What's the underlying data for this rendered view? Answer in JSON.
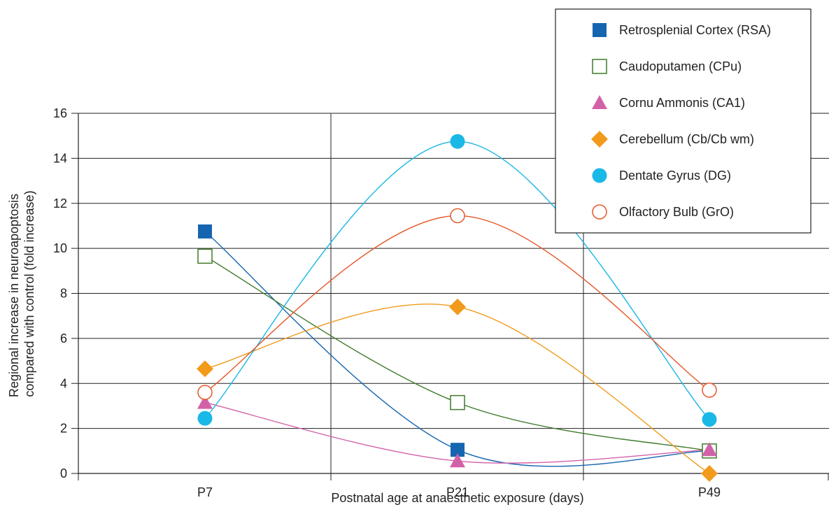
{
  "chart_data": {
    "type": "line",
    "title": "",
    "xlabel": "Postnatal age at anaesthetic exposure (days)",
    "ylabel_lines": [
      "Regional increase in neuroapoptosis",
      "compared with control (fold increase)"
    ],
    "categories": [
      "P7",
      "P21",
      "P49"
    ],
    "ylim": [
      0,
      16
    ],
    "yticks": [
      0,
      2,
      4,
      6,
      8,
      10,
      12,
      14,
      16
    ],
    "grid": true,
    "legend_position": "top-right",
    "smooth": true,
    "series": [
      {
        "name": "Retrosplenial Cortex (RSA)",
        "values": [
          10.75,
          1.05,
          1.0
        ],
        "color": "#1565b0",
        "marker": "filled-square"
      },
      {
        "name": "Caudoputamen (CPu)",
        "values": [
          9.65,
          3.15,
          1.0
        ],
        "color": "#3f7a2a",
        "marker": "open-square"
      },
      {
        "name": "Cornu Ammonis (CA1)",
        "values": [
          3.15,
          0.55,
          1.05
        ],
        "color": "#d262a8",
        "marker": "filled-triangle"
      },
      {
        "name": "Cerebellum (Cb/Cb wm)",
        "values": [
          4.65,
          7.4,
          0.0
        ],
        "color": "#f29a1c",
        "marker": "filled-diamond"
      },
      {
        "name": "Dentate Gyrus (DG)",
        "values": [
          2.45,
          14.75,
          2.4
        ],
        "color": "#1ab8e6",
        "marker": "filled-circle"
      },
      {
        "name": "Olfactory Bulb (GrO)",
        "values": [
          3.6,
          11.45,
          3.7
        ],
        "color": "#e4582b",
        "marker": "open-circle"
      }
    ]
  }
}
